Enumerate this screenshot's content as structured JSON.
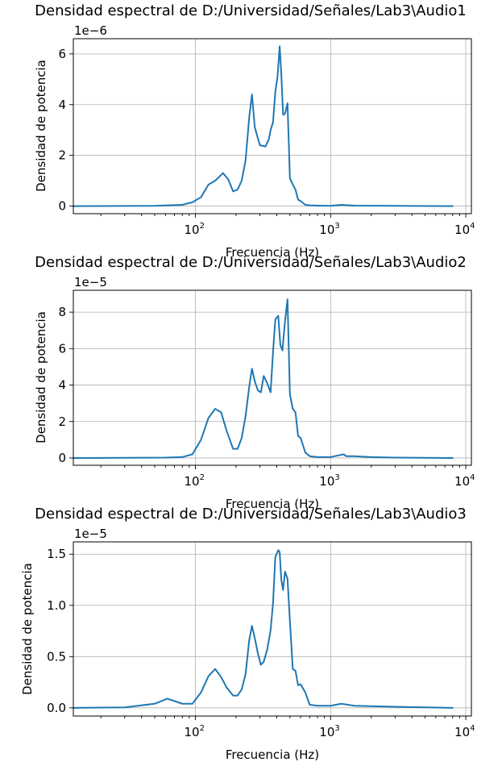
{
  "figure": {
    "line_color": "#1f77b4",
    "grid_color": "#b0b0b0"
  },
  "chart_data": [
    {
      "type": "line",
      "title": "Densidad espectral de D:/Universidad/Señales/Lab3\\Audio1",
      "xlabel": "Frecuencia (Hz)",
      "ylabel": "Densidad de potencia",
      "offset_text": "1e−6",
      "xscale": "log",
      "xlim": [
        12.5,
        11000
      ],
      "ylim": [
        -0.3,
        6.6
      ],
      "grid": true,
      "xticks": [
        {
          "value": 100,
          "base": "10",
          "exp": "2"
        },
        {
          "value": 1000,
          "base": "10",
          "exp": "3"
        },
        {
          "value": 10000,
          "base": "10",
          "exp": "4"
        }
      ],
      "yticks": [
        {
          "value": 0,
          "label": "0"
        },
        {
          "value": 2,
          "label": "2"
        },
        {
          "value": 4,
          "label": "4"
        },
        {
          "value": 6,
          "label": "6"
        }
      ],
      "series": [
        {
          "x": [
            12.5,
            50,
            80,
            95,
            110,
            125,
            140,
            160,
            175,
            190,
            205,
            220,
            235,
            250,
            262,
            275,
            300,
            330,
            350,
            360,
            375,
            390,
            405,
            420,
            432,
            445,
            460,
            480,
            500,
            525,
            550,
            575,
            600,
            650,
            700,
            800,
            1000,
            1200,
            1500,
            3000,
            8000
          ],
          "y": [
            0,
            0.01,
            0.05,
            0.15,
            0.35,
            0.85,
            1.0,
            1.3,
            1.05,
            0.58,
            0.65,
            1.0,
            1.8,
            3.5,
            4.4,
            3.1,
            2.4,
            2.35,
            2.65,
            3.0,
            3.3,
            4.5,
            5.1,
            6.3,
            5.2,
            3.6,
            3.65,
            4.05,
            1.1,
            0.85,
            0.65,
            0.25,
            0.2,
            0.05,
            0.03,
            0.02,
            0.01,
            0.05,
            0.02,
            0.01,
            0.0
          ]
        }
      ]
    },
    {
      "type": "line",
      "title": "Densidad espectral de D:/Universidad/Señales/Lab3\\Audio2",
      "xlabel": "Frecuencia (Hz)",
      "ylabel": "Densidad de potencia",
      "offset_text": "1e−5",
      "xscale": "log",
      "xlim": [
        12.5,
        11000
      ],
      "ylim": [
        -0.4,
        9.2
      ],
      "grid": true,
      "xticks": [
        {
          "value": 100,
          "base": "10",
          "exp": "2"
        },
        {
          "value": 1000,
          "base": "10",
          "exp": "3"
        },
        {
          "value": 10000,
          "base": "10",
          "exp": "4"
        }
      ],
      "yticks": [
        {
          "value": 0,
          "label": "0"
        },
        {
          "value": 2,
          "label": "2"
        },
        {
          "value": 4,
          "label": "4"
        },
        {
          "value": 6,
          "label": "6"
        },
        {
          "value": 8,
          "label": "8"
        }
      ],
      "series": [
        {
          "x": [
            12.5,
            60,
            80,
            95,
            110,
            125,
            140,
            155,
            170,
            190,
            205,
            220,
            235,
            250,
            262,
            275,
            290,
            305,
            320,
            340,
            360,
            375,
            390,
            410,
            425,
            440,
            460,
            480,
            500,
            525,
            550,
            575,
            600,
            650,
            700,
            800,
            1000,
            1250,
            1300,
            1500,
            2000,
            3000,
            8000
          ],
          "y": [
            0,
            0.02,
            0.05,
            0.2,
            1.0,
            2.2,
            2.7,
            2.5,
            1.5,
            0.5,
            0.5,
            1.1,
            2.3,
            3.9,
            4.9,
            4.2,
            3.7,
            3.6,
            4.5,
            4.1,
            3.6,
            5.8,
            7.6,
            7.8,
            6.2,
            5.9,
            7.5,
            8.7,
            3.5,
            2.7,
            2.5,
            1.2,
            1.1,
            0.3,
            0.1,
            0.05,
            0.05,
            0.2,
            0.1,
            0.1,
            0.05,
            0.02,
            0.0
          ]
        }
      ]
    },
    {
      "type": "line",
      "title": "Densidad espectral de D:/Universidad/Señales/Lab3\\Audio3",
      "xlabel": "Frecuencia (Hz)",
      "ylabel": "Densidad de potencia",
      "offset_text": "1e−5",
      "xscale": "log",
      "xlim": [
        12.5,
        11000
      ],
      "ylim": [
        -0.08,
        1.62
      ],
      "grid": true,
      "xticks": [
        {
          "value": 100,
          "base": "10",
          "exp": "2"
        },
        {
          "value": 1000,
          "base": "10",
          "exp": "3"
        },
        {
          "value": 10000,
          "base": "10",
          "exp": "4"
        }
      ],
      "yticks": [
        {
          "value": 0,
          "label": "0.0"
        },
        {
          "value": 0.5,
          "label": "0.5"
        },
        {
          "value": 1.0,
          "label": "1.0"
        },
        {
          "value": 1.5,
          "label": "1.5"
        }
      ],
      "series": [
        {
          "x": [
            12.5,
            30,
            50,
            62,
            80,
            95,
            110,
            125,
            140,
            155,
            170,
            190,
            205,
            220,
            235,
            250,
            262,
            275,
            290,
            305,
            320,
            340,
            360,
            375,
            390,
            410,
            420,
            432,
            445,
            460,
            480,
            500,
            525,
            550,
            575,
            600,
            650,
            700,
            800,
            1000,
            1200,
            1500,
            3000,
            8000
          ],
          "y": [
            0,
            0.005,
            0.04,
            0.09,
            0.04,
            0.04,
            0.15,
            0.31,
            0.38,
            0.3,
            0.2,
            0.12,
            0.12,
            0.18,
            0.33,
            0.66,
            0.8,
            0.68,
            0.53,
            0.42,
            0.45,
            0.57,
            0.76,
            1.02,
            1.47,
            1.54,
            1.52,
            1.25,
            1.15,
            1.33,
            1.26,
            0.85,
            0.38,
            0.36,
            0.22,
            0.23,
            0.15,
            0.03,
            0.02,
            0.02,
            0.04,
            0.02,
            0.01,
            0.0
          ]
        }
      ]
    }
  ]
}
